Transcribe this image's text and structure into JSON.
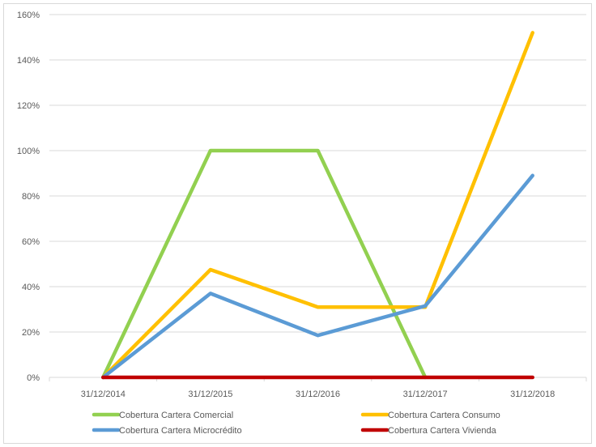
{
  "chart_data": {
    "type": "line",
    "title": "",
    "xlabel": "",
    "ylabel": "",
    "categories": [
      "31/12/2014",
      "31/12/2015",
      "31/12/2016",
      "31/12/2017",
      "31/12/2018"
    ],
    "ylim": [
      0,
      160
    ],
    "yticks": [
      0,
      20,
      40,
      60,
      80,
      100,
      120,
      140,
      160
    ],
    "ytick_labels": [
      "0%",
      "20%",
      "40%",
      "60%",
      "80%",
      "100%",
      "120%",
      "140%",
      "160%"
    ],
    "grid": true,
    "legend_position": "bottom",
    "series": [
      {
        "name": "Cobertura Cartera Comercial",
        "color": "#92d050",
        "values": [
          0,
          100,
          100,
          0,
          null
        ]
      },
      {
        "name": "Cobertura Cartera Consumo",
        "color": "#ffc000",
        "values": [
          0,
          47.5,
          31,
          31,
          152
        ]
      },
      {
        "name": "Cobertura Cartera Microcrédito",
        "color": "#5b9bd5",
        "values": [
          0,
          37,
          18.5,
          31.5,
          89
        ]
      },
      {
        "name": "Cobertura Cartera Vivienda",
        "color": "#c00000",
        "values": [
          0,
          0,
          0,
          0,
          0
        ]
      }
    ]
  }
}
